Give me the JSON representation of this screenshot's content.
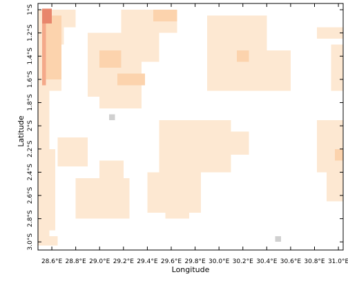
{
  "chart_data": {
    "type": "map",
    "x_label": "Longitude",
    "y_label": "Latitude",
    "xlim": [
      28.484,
      31.04
    ],
    "ylim": [
      -3.07,
      -0.946
    ],
    "xticks": [
      {
        "value": 28.6,
        "label": "28.6°E"
      },
      {
        "value": 28.8,
        "label": "28.8°E"
      },
      {
        "value": 29.0,
        "label": "29.0°E"
      },
      {
        "value": 29.2,
        "label": "29.2°E"
      },
      {
        "value": 29.4,
        "label": "29.4°E"
      },
      {
        "value": 29.6,
        "label": "29.6°E"
      },
      {
        "value": 29.8,
        "label": "29.8°E"
      },
      {
        "value": 30.0,
        "label": "30.0°E"
      },
      {
        "value": 30.2,
        "label": "30.2°E"
      },
      {
        "value": 30.4,
        "label": "30.4°E"
      },
      {
        "value": 30.6,
        "label": "30.6°E"
      },
      {
        "value": 30.8,
        "label": "30.8°E"
      },
      {
        "value": 31.0,
        "label": "31.0°E"
      }
    ],
    "yticks": [
      {
        "value": -1.0,
        "label": "1°S"
      },
      {
        "value": -1.2,
        "label": "1.2°S"
      },
      {
        "value": -1.4,
        "label": "1.4°S"
      },
      {
        "value": -1.6,
        "label": "1.6°S"
      },
      {
        "value": -1.8,
        "label": "1.8°S"
      },
      {
        "value": -2.0,
        "label": "2°S"
      },
      {
        "value": -2.2,
        "label": "2.2°S"
      },
      {
        "value": -2.4,
        "label": "2.4°S"
      },
      {
        "value": -2.6,
        "label": "2.6°S"
      },
      {
        "value": -2.8,
        "label": "2.8°S"
      },
      {
        "value": -3.0,
        "label": "3.0°S"
      }
    ],
    "level_colors": [
      "#d0d0d0",
      "#fde8d2",
      "#fcd3ad",
      "#f4a98a",
      "#e8866c"
    ],
    "regions": [
      {
        "lon": [
          28.48,
          28.7
        ],
        "lat": [
          -1.0,
          -1.3
        ],
        "level": 1
      },
      {
        "lon": [
          28.48,
          28.68
        ],
        "lat": [
          -1.3,
          -1.7
        ],
        "level": 1
      },
      {
        "lon": [
          28.7,
          28.8
        ],
        "lat": [
          -1.0,
          -1.15
        ],
        "level": 1
      },
      {
        "lon": [
          28.48,
          28.58
        ],
        "lat": [
          -1.7,
          -3.0
        ],
        "level": 1
      },
      {
        "lon": [
          28.58,
          28.63
        ],
        "lat": [
          -2.2,
          -2.9
        ],
        "level": 1
      },
      {
        "lon": [
          28.48,
          28.65
        ],
        "lat": [
          -2.95,
          -3.03
        ],
        "level": 1
      },
      {
        "lon": [
          28.9,
          29.35
        ],
        "lat": [
          -1.2,
          -1.75
        ],
        "level": 1
      },
      {
        "lon": [
          29.0,
          29.35
        ],
        "lat": [
          -1.75,
          -1.85
        ],
        "level": 1
      },
      {
        "lon": [
          29.18,
          29.65
        ],
        "lat": [
          -1.0,
          -1.2
        ],
        "level": 1
      },
      {
        "lon": [
          29.35,
          29.5
        ],
        "lat": [
          -1.2,
          -1.45
        ],
        "level": 1
      },
      {
        "lon": [
          29.9,
          30.4
        ],
        "lat": [
          -1.05,
          -1.7
        ],
        "level": 1
      },
      {
        "lon": [
          30.4,
          30.6
        ],
        "lat": [
          -1.35,
          -1.7
        ],
        "level": 1
      },
      {
        "lon": [
          30.82,
          31.04
        ],
        "lat": [
          -1.15,
          -1.25
        ],
        "level": 1
      },
      {
        "lon": [
          30.94,
          31.04
        ],
        "lat": [
          -1.3,
          -1.7
        ],
        "level": 1
      },
      {
        "lon": [
          29.5,
          30.1
        ],
        "lat": [
          -1.95,
          -2.4
        ],
        "level": 1
      },
      {
        "lon": [
          30.1,
          30.25
        ],
        "lat": [
          -2.05,
          -2.25
        ],
        "level": 1
      },
      {
        "lon": [
          29.4,
          29.85
        ],
        "lat": [
          -2.4,
          -2.75
        ],
        "level": 1
      },
      {
        "lon": [
          29.55,
          29.75
        ],
        "lat": [
          -2.75,
          -2.8
        ],
        "level": 1
      },
      {
        "lon": [
          28.8,
          29.25
        ],
        "lat": [
          -2.45,
          -2.8
        ],
        "level": 1
      },
      {
        "lon": [
          29.0,
          29.2
        ],
        "lat": [
          -2.3,
          -2.45
        ],
        "level": 1
      },
      {
        "lon": [
          28.65,
          28.9
        ],
        "lat": [
          -2.1,
          -2.35
        ],
        "level": 1
      },
      {
        "lon": [
          30.82,
          31.04
        ],
        "lat": [
          -1.95,
          -2.4
        ],
        "level": 1
      },
      {
        "lon": [
          30.9,
          31.04
        ],
        "lat": [
          -2.4,
          -2.65
        ],
        "level": 1
      },
      {
        "lon": [
          28.55,
          28.68
        ],
        "lat": [
          -1.05,
          -1.6
        ],
        "level": 2
      },
      {
        "lon": [
          29.0,
          29.18
        ],
        "lat": [
          -1.35,
          -1.5
        ],
        "level": 2
      },
      {
        "lon": [
          29.15,
          29.38
        ],
        "lat": [
          -1.55,
          -1.65
        ],
        "level": 2
      },
      {
        "lon": [
          29.45,
          29.65
        ],
        "lat": [
          -1.0,
          -1.1
        ],
        "level": 2
      },
      {
        "lon": [
          30.15,
          30.25
        ],
        "lat": [
          -1.35,
          -1.45
        ],
        "level": 2
      },
      {
        "lon": [
          30.97,
          31.04
        ],
        "lat": [
          -2.2,
          -2.3
        ],
        "level": 2
      },
      {
        "lon": [
          28.52,
          28.55
        ],
        "lat": [
          -1.05,
          -1.65
        ],
        "level": 3
      },
      {
        "lon": [
          28.52,
          28.6
        ],
        "lat": [
          -0.99,
          -1.12
        ],
        "level": 4
      },
      {
        "lon": [
          29.08,
          29.13
        ],
        "lat": [
          -1.9,
          -1.95
        ],
        "level": 0
      },
      {
        "lon": [
          30.47,
          30.52
        ],
        "lat": [
          -2.95,
          -3.0
        ],
        "level": 0
      }
    ]
  }
}
